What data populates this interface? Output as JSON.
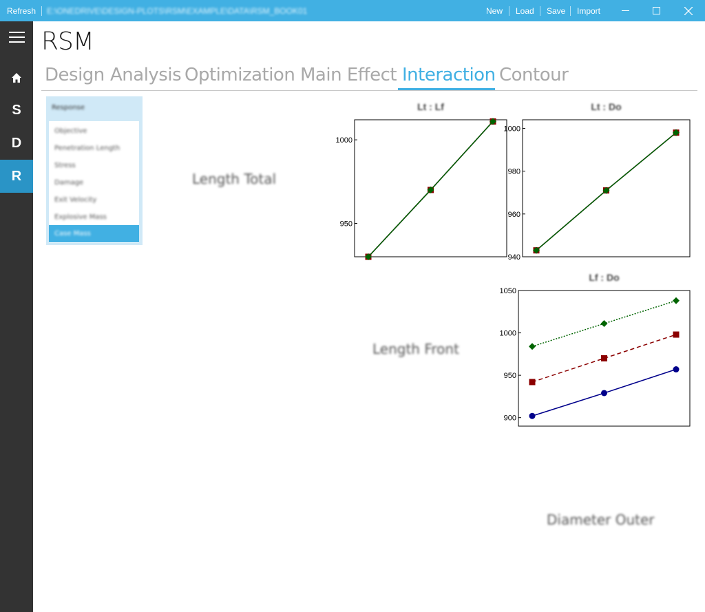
{
  "titlebar": {
    "refresh": "Refresh",
    "path": "E:\\ONEDRIVE\\DESIGN-PLOTS\\RSM\\EXAMPLE\\DATA\\RSM_BOOK01",
    "menu": [
      "New",
      "Load",
      "Save",
      "Import"
    ],
    "accent": "#41b0e3"
  },
  "window_controls": [
    "minimize-icon",
    "maximize-icon",
    "close-icon"
  ],
  "sidebar": {
    "items": [
      {
        "label": "",
        "icon": "home-icon"
      },
      {
        "label": "S"
      },
      {
        "label": "D"
      },
      {
        "label": "R",
        "active": true
      }
    ]
  },
  "app": {
    "title": "RSM"
  },
  "tabs": [
    {
      "label": "Design"
    },
    {
      "label": "Analysis"
    },
    {
      "label": "Optimization"
    },
    {
      "label": "Main Effect"
    },
    {
      "label": "Interaction",
      "active": true
    },
    {
      "label": "Contour"
    }
  ],
  "responses": {
    "title": "Response",
    "items": [
      {
        "label": "Objective"
      },
      {
        "label": "Penetration Length"
      },
      {
        "label": "Stress"
      },
      {
        "label": "Damage"
      },
      {
        "label": "Exit Velocity"
      },
      {
        "label": "Explosive Mass"
      },
      {
        "label": "Case Mass",
        "selected": true
      }
    ]
  },
  "matrix_labels": {
    "row1": "Length Total",
    "row2": "Length Front",
    "row3": "Diameter Outer"
  },
  "chart_data": [
    {
      "type": "line",
      "title": "Lt : Lf",
      "x": [
        1,
        2,
        3
      ],
      "ylim": [
        930,
        1012
      ],
      "yticks": [
        950,
        1000
      ],
      "series": [
        {
          "values": [
            930,
            970,
            1011
          ],
          "color": "#0000cc",
          "marker": "circle"
        },
        {
          "values": [
            930,
            970,
            1011
          ],
          "color": "#8b0000",
          "marker": "square"
        },
        {
          "values": [
            930,
            970,
            1011
          ],
          "color": "#006400",
          "marker": "diamond"
        }
      ]
    },
    {
      "type": "line",
      "title": "Lt : Do",
      "x": [
        1,
        2,
        3
      ],
      "ylim": [
        940,
        1004
      ],
      "yticks": [
        940,
        960,
        980,
        1000
      ],
      "series": [
        {
          "values": [
            943,
            971,
            998
          ],
          "color": "#0000cc",
          "marker": "circle"
        },
        {
          "values": [
            943,
            971,
            998
          ],
          "color": "#8b0000",
          "marker": "square"
        },
        {
          "values": [
            943,
            971,
            998
          ],
          "color": "#006400",
          "marker": "diamond"
        }
      ]
    },
    {
      "type": "line",
      "title": "Lf : Do",
      "x": [
        1,
        2,
        3
      ],
      "ylim": [
        890,
        1050
      ],
      "yticks": [
        900,
        950,
        1000,
        1050
      ],
      "series": [
        {
          "values": [
            902,
            929,
            957
          ],
          "color": "#00008b",
          "marker": "circle",
          "dash": "solid"
        },
        {
          "values": [
            942,
            970,
            998
          ],
          "color": "#8b0000",
          "marker": "square",
          "dash": "dashed"
        },
        {
          "values": [
            984,
            1011,
            1038
          ],
          "color": "#006400",
          "marker": "diamond",
          "dash": "dotted"
        }
      ]
    }
  ]
}
